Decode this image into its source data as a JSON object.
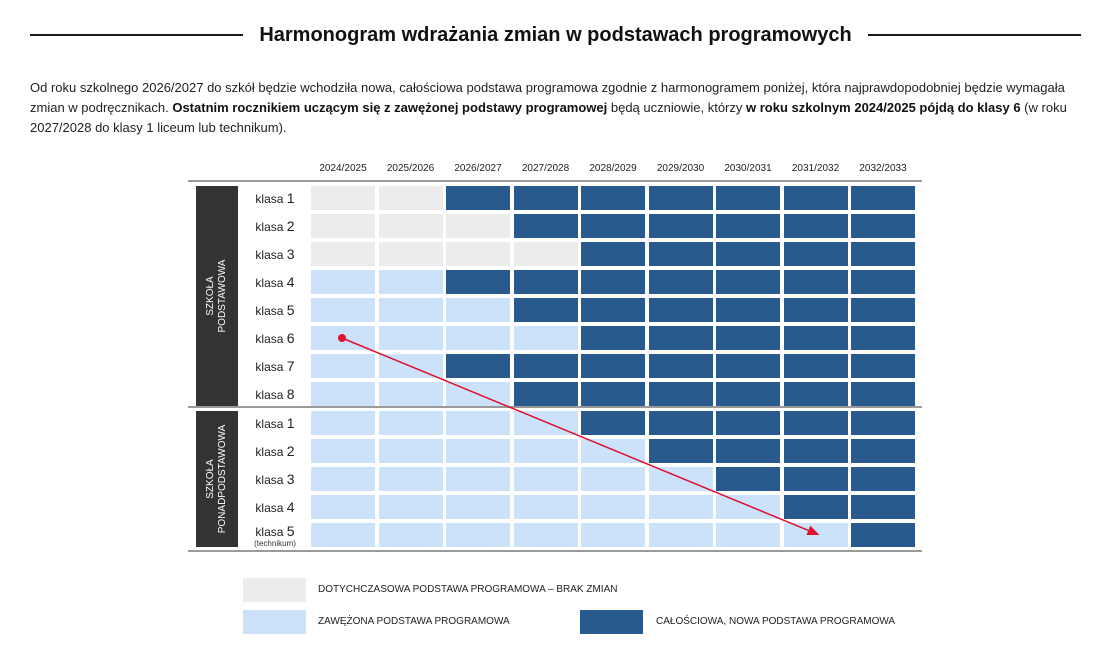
{
  "title": "Harmonogram wdrażania zmian w podstawach programowych",
  "intro": {
    "p1": "Od roku szkolnego 2026/2027 do szkół będzie wchodziła nowa, całościowa podstawa programowa zgodnie z harmonogramem poniżej, która najprawdopodobniej będzie wymagała zmian w podręcznikach. ",
    "p2_bold": "Ostatnim rocznikiem uczącym się z zawężonej podstawy programowej",
    "p3": " będą uczniowie, którzy ",
    "p4_bold": "w roku szkolnym 2024/2025 pójdą do klasy 6",
    "p5": " (w roku 2027/2028 do klasy 1 liceum lub technikum)."
  },
  "colors": {
    "old": "#ececec",
    "narrowed": "#cce2fa",
    "new": "#285a8e",
    "sidebar": "#333333",
    "arrow": "#e0102e"
  },
  "years": [
    "2024/2025",
    "2025/2026",
    "2026/2027",
    "2027/2028",
    "2028/2029",
    "2029/2030",
    "2030/2031",
    "2031/2032",
    "2032/2033"
  ],
  "groups": [
    {
      "label_line1": "SZKOŁA",
      "label_line2": "PODSTAWOWA",
      "rows": [
        {
          "prefix": "klasa",
          "num": "1",
          "sub": "",
          "cells": [
            "old",
            "old",
            "new",
            "new",
            "new",
            "new",
            "new",
            "new",
            "new"
          ]
        },
        {
          "prefix": "klasa",
          "num": "2",
          "sub": "",
          "cells": [
            "old",
            "old",
            "old",
            "new",
            "new",
            "new",
            "new",
            "new",
            "new"
          ]
        },
        {
          "prefix": "klasa",
          "num": "3",
          "sub": "",
          "cells": [
            "old",
            "old",
            "old",
            "old",
            "new",
            "new",
            "new",
            "new",
            "new"
          ]
        },
        {
          "prefix": "klasa",
          "num": "4",
          "sub": "",
          "cells": [
            "narrowed",
            "narrowed",
            "new",
            "new",
            "new",
            "new",
            "new",
            "new",
            "new"
          ]
        },
        {
          "prefix": "klasa",
          "num": "5",
          "sub": "",
          "cells": [
            "narrowed",
            "narrowed",
            "narrowed",
            "new",
            "new",
            "new",
            "new",
            "new",
            "new"
          ]
        },
        {
          "prefix": "klasa",
          "num": "6",
          "sub": "",
          "cells": [
            "narrowed",
            "narrowed",
            "narrowed",
            "narrowed",
            "new",
            "new",
            "new",
            "new",
            "new"
          ]
        },
        {
          "prefix": "klasa",
          "num": "7",
          "sub": "",
          "cells": [
            "narrowed",
            "narrowed",
            "new",
            "new",
            "new",
            "new",
            "new",
            "new",
            "new"
          ]
        },
        {
          "prefix": "klasa",
          "num": "8",
          "sub": "",
          "cells": [
            "narrowed",
            "narrowed",
            "narrowed",
            "new",
            "new",
            "new",
            "new",
            "new",
            "new"
          ]
        }
      ]
    },
    {
      "label_line1": "SZKOŁA",
      "label_line2": "PONADPODSTAWOWA",
      "rows": [
        {
          "prefix": "klasa",
          "num": "1",
          "sub": "",
          "cells": [
            "narrowed",
            "narrowed",
            "narrowed",
            "narrowed",
            "new",
            "new",
            "new",
            "new",
            "new"
          ]
        },
        {
          "prefix": "klasa",
          "num": "2",
          "sub": "",
          "cells": [
            "narrowed",
            "narrowed",
            "narrowed",
            "narrowed",
            "narrowed",
            "new",
            "new",
            "new",
            "new"
          ]
        },
        {
          "prefix": "klasa",
          "num": "3",
          "sub": "",
          "cells": [
            "narrowed",
            "narrowed",
            "narrowed",
            "narrowed",
            "narrowed",
            "narrowed",
            "new",
            "new",
            "new"
          ]
        },
        {
          "prefix": "klasa",
          "num": "4",
          "sub": "",
          "cells": [
            "narrowed",
            "narrowed",
            "narrowed",
            "narrowed",
            "narrowed",
            "narrowed",
            "narrowed",
            "new",
            "new"
          ]
        },
        {
          "prefix": "klasa",
          "num": "5",
          "sub": "(technikum)",
          "cells": [
            "narrowed",
            "narrowed",
            "narrowed",
            "narrowed",
            "narrowed",
            "narrowed",
            "narrowed",
            "narrowed",
            "new"
          ]
        }
      ]
    }
  ],
  "legend": {
    "old": "DOTYCHCZASOWA PODSTAWA PROGRAMOWA – BRAK ZMIAN",
    "narrowed": "ZAWĘŻONA PODSTAWA PROGRAMOWA",
    "new": "CAŁOŚCIOWA, NOWA PODSTAWA PROGRAMOWA"
  },
  "arrow": {
    "from": {
      "group": 0,
      "row": 5,
      "year": "2024/2025"
    },
    "to": {
      "group": 1,
      "row": 4,
      "year": "2031/2032"
    }
  }
}
